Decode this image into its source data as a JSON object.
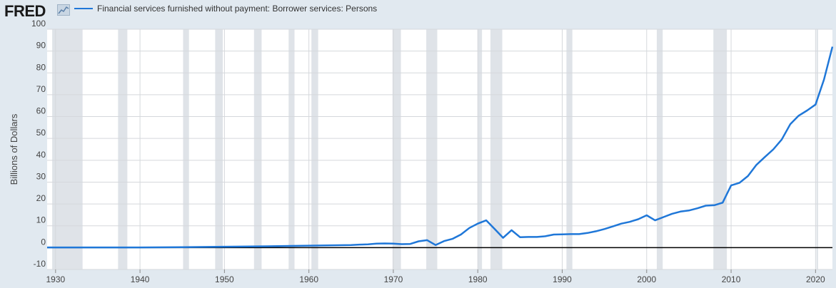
{
  "header": {
    "logo_text": "FRED",
    "legend_label": "Financial services furnished without payment: Borrower services: Persons"
  },
  "colors": {
    "series": "#1f77d8",
    "recession": "#dfe3e8",
    "background": "#e1e9f0",
    "plot": "#ffffff",
    "grid": "#d5d8dc",
    "zero_line": "#000000"
  },
  "chart_data": {
    "type": "line",
    "title": "",
    "xlabel": "",
    "ylabel": "Billions of Dollars",
    "xlim": [
      1929,
      2022
    ],
    "ylim": [
      -10,
      100
    ],
    "yticks": [
      -10,
      0,
      10,
      20,
      30,
      40,
      50,
      60,
      70,
      80,
      90,
      100
    ],
    "xticks": [
      1930,
      1940,
      1950,
      1960,
      1970,
      1980,
      1990,
      2000,
      2010,
      2020
    ],
    "grid": "vertical",
    "legend": "top-left",
    "recessions": [
      [
        1929.6,
        1933.2
      ],
      [
        1937.4,
        1938.5
      ],
      [
        1945.1,
        1945.8
      ],
      [
        1948.9,
        1949.8
      ],
      [
        1953.5,
        1954.4
      ],
      [
        1957.6,
        1958.3
      ],
      [
        1960.3,
        1961.1
      ],
      [
        1969.9,
        1970.9
      ],
      [
        1973.9,
        1975.2
      ],
      [
        1980.0,
        1980.5
      ],
      [
        1981.5,
        1982.9
      ],
      [
        1990.5,
        1991.2
      ],
      [
        2001.2,
        2001.9
      ],
      [
        2007.9,
        2009.5
      ],
      [
        2020.1,
        2020.3
      ]
    ],
    "series": [
      {
        "name": "Financial services furnished without payment: Borrower services: Persons",
        "x": [
          1929,
          1930,
          1935,
          1940,
          1945,
          1950,
          1955,
          1960,
          1965,
          1966,
          1967,
          1968,
          1969,
          1970,
          1971,
          1972,
          1973,
          1974,
          1975,
          1976,
          1977,
          1978,
          1979,
          1980,
          1981,
          1982,
          1983,
          1984,
          1985,
          1986,
          1987,
          1988,
          1989,
          1990,
          1991,
          1992,
          1993,
          1994,
          1995,
          1996,
          1997,
          1998,
          1999,
          2000,
          2001,
          2002,
          2003,
          2004,
          2005,
          2006,
          2007,
          2008,
          2009,
          2010,
          2011,
          2012,
          2013,
          2014,
          2015,
          2016,
          2017,
          2018,
          2019,
          2020,
          2021,
          2022
        ],
        "values": [
          0.1,
          0.1,
          0.1,
          0.1,
          0.2,
          0.4,
          0.6,
          0.9,
          1.2,
          1.4,
          1.5,
          1.8,
          1.9,
          1.8,
          1.6,
          1.7,
          2.9,
          3.4,
          1.2,
          3.0,
          4.0,
          6.0,
          9.0,
          11.0,
          12.5,
          8.5,
          4.5,
          8.0,
          4.8,
          4.9,
          4.9,
          5.2,
          6.0,
          6.1,
          6.2,
          6.2,
          6.7,
          7.5,
          8.5,
          9.7,
          11.0,
          11.8,
          13.0,
          14.8,
          12.5,
          14.0,
          15.5,
          16.5,
          17.0,
          18.0,
          19.2,
          19.4,
          20.6,
          28.5,
          29.7,
          32.8,
          37.9,
          41.5,
          45.0,
          49.5,
          56.5,
          60.4,
          62.8,
          65.5,
          77.0,
          92.0
        ]
      }
    ]
  }
}
